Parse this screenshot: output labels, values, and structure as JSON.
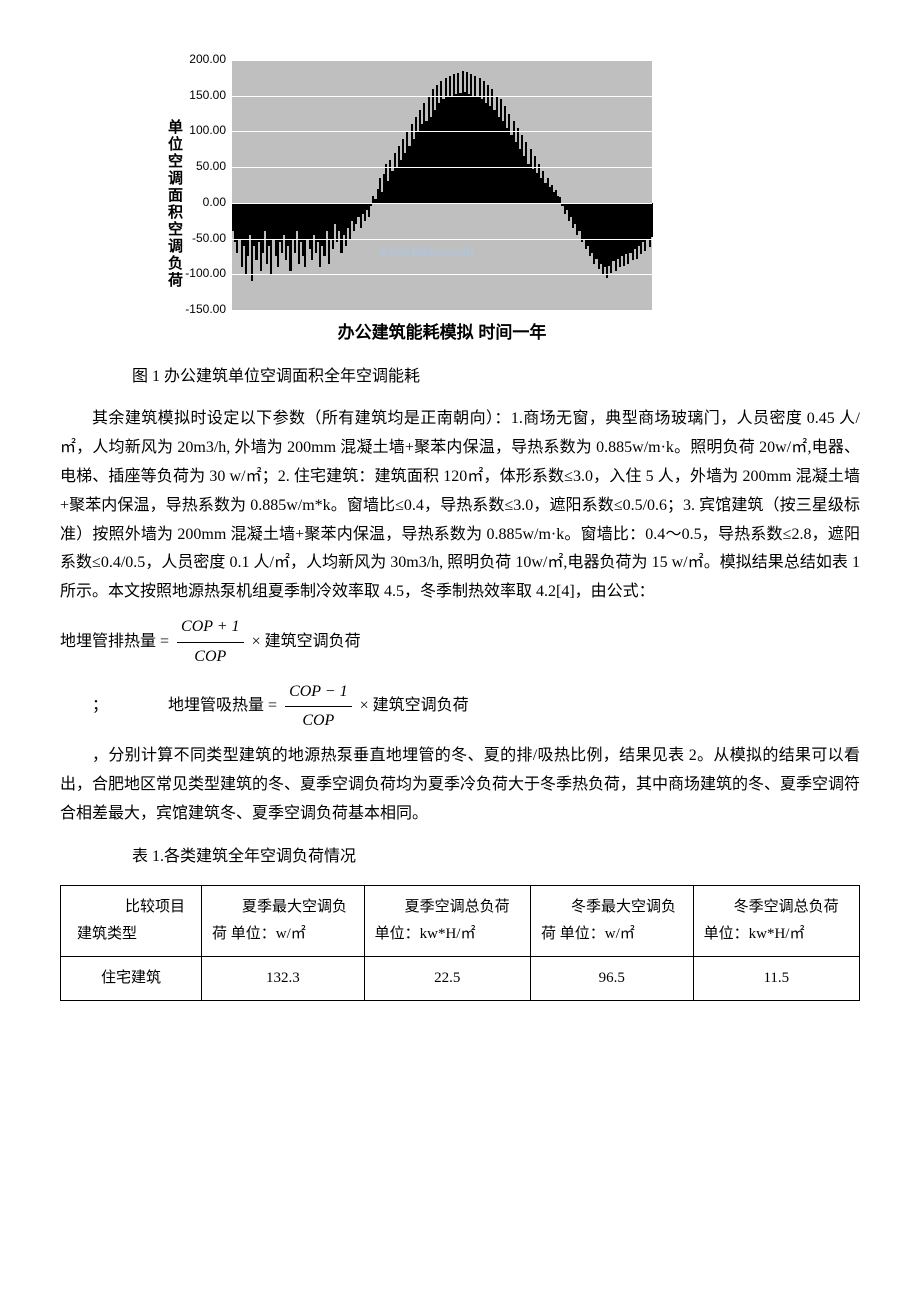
{
  "chart": {
    "type": "bar",
    "y_label": "单位空调面积空调负荷",
    "x_title": "办公建筑能耗模拟 时间一年",
    "background_color": "#bfbfbf",
    "grid_color": "#ffffff",
    "bar_color": "#000000",
    "ymin": -150,
    "ymax": 200,
    "yticks": [
      -150,
      -100,
      -50,
      0,
      50,
      100,
      150,
      200
    ],
    "ytick_labels": [
      "-150.00",
      "-100.00",
      "-50.00",
      "0.00",
      "50.00",
      "100.00",
      "150.00",
      "200.00"
    ],
    "series": [
      -40,
      -55,
      -70,
      -50,
      -90,
      -60,
      -100,
      -75,
      -45,
      -110,
      -60,
      -80,
      -55,
      -95,
      -70,
      -40,
      -85,
      -60,
      -100,
      -50,
      -75,
      -90,
      -55,
      -70,
      -45,
      -80,
      -60,
      -95,
      -50,
      -70,
      -40,
      -85,
      -55,
      -75,
      -90,
      -50,
      -65,
      -80,
      -45,
      -70,
      -55,
      -90,
      -60,
      -75,
      -40,
      -85,
      -50,
      -65,
      -30,
      -55,
      -40,
      -70,
      -45,
      -60,
      -35,
      -50,
      -25,
      -40,
      -30,
      -20,
      -35,
      -15,
      -25,
      -10,
      -20,
      -5,
      10,
      5,
      20,
      35,
      15,
      40,
      55,
      30,
      60,
      45,
      70,
      50,
      80,
      60,
      90,
      70,
      100,
      80,
      110,
      90,
      120,
      100,
      130,
      110,
      140,
      115,
      150,
      120,
      160,
      130,
      165,
      140,
      170,
      145,
      175,
      148,
      178,
      150,
      180,
      152,
      182,
      154,
      184,
      155,
      183,
      153,
      181,
      150,
      178,
      148,
      175,
      145,
      170,
      140,
      165,
      135,
      160,
      130,
      150,
      120,
      145,
      115,
      135,
      105,
      125,
      95,
      115,
      85,
      105,
      75,
      95,
      65,
      85,
      55,
      75,
      48,
      65,
      42,
      55,
      35,
      45,
      28,
      35,
      22,
      25,
      15,
      18,
      10,
      8,
      -5,
      -15,
      -10,
      -25,
      -20,
      -35,
      -30,
      -45,
      -40,
      -55,
      -50,
      -65,
      -60,
      -75,
      -70,
      -85,
      -78,
      -92,
      -85,
      -100,
      -90,
      -105,
      -88,
      -98,
      -82,
      -95,
      -78,
      -90,
      -75,
      -88,
      -72,
      -85,
      -70,
      -80,
      -65,
      -78,
      -60,
      -72,
      -55,
      -68,
      -50,
      -62,
      -48
    ],
    "watermark_text": "www.bdocx.com",
    "watermark_color": "#a8c8e8"
  },
  "figure_caption": "图 1 办公建筑单位空调面积全年空调能耗",
  "paragraph1": "其余建筑模拟时设定以下参数（所有建筑均是正南朝向）：1.商场无窗，典型商场玻璃门，人员密度 0.45 人/㎡，人均新风为 20m3/h, 外墙为 200mm 混凝土墙+聚苯内保温，导热系数为 0.885w/m·k。照明负荷 20w/㎡,电器、电梯、插座等负荷为 30 w/㎡；2. 住宅建筑：建筑面积 120㎡，体形系数≤3.0，入住 5 人，外墙为 200mm 混凝土墙+聚苯内保温，导热系数为 0.885w/m*k。窗墙比≤0.4，导热系数≤3.0，遮阳系数≤0.5/0.6；3. 宾馆建筑（按三星级标准）按照外墙为 200mm 混凝土墙+聚苯内保温，导热系数为 0.885w/m·k。窗墙比：0.4～0.5，导热系数≤2.8，遮阳系数≤0.4/0.5，人员密度 0.1 人/㎡，人均新风为 30m3/h, 照明负荷 10w/㎡,电器负荷为 15 w/㎡。模拟结果总结如表 1 所示。本文按照地源热泵机组夏季制冷效率取 4.5，冬季制热效率取 4.2[4]，由公式：",
  "formula1": {
    "lhs": "地埋管排热量",
    "eq": "=",
    "num": "COP + 1",
    "den": "COP",
    "times": "×",
    "rhs": "建筑空调负荷"
  },
  "formula2": {
    "prefix": "；",
    "lhs": "地埋管吸热量",
    "eq": "=",
    "num": "COP − 1",
    "den": "COP",
    "times": "×",
    "rhs": "建筑空调负荷"
  },
  "paragraph2": "，分别计算不同类型建筑的地源热泵垂直地埋管的冬、夏的排/吸热比例，结果见表 2。从模拟的结果可以看出，合肥地区常见类型建筑的冬、夏季空调负荷均为夏季冷负荷大于冬季热负荷，其中商场建筑的冬、夏季空调符合相差最大，宾馆建筑冬、夏季空调负荷基本相同。",
  "table_caption": "表 1.各类建筑全年空调负荷情况",
  "table": {
    "header_left_top": "比较项目",
    "header_left_bottom": "建筑类型",
    "columns": [
      "夏季最大空调负荷 单位：w/㎡",
      "夏季空调总负荷单位：kw*H/㎡",
      "冬季最大空调负荷 单位：w/㎡",
      "冬季空调总负荷单位：kw*H/㎡"
    ],
    "row1_label": "住宅建筑",
    "row1": [
      "132.3",
      "22.5",
      "96.5",
      "11.5"
    ]
  }
}
